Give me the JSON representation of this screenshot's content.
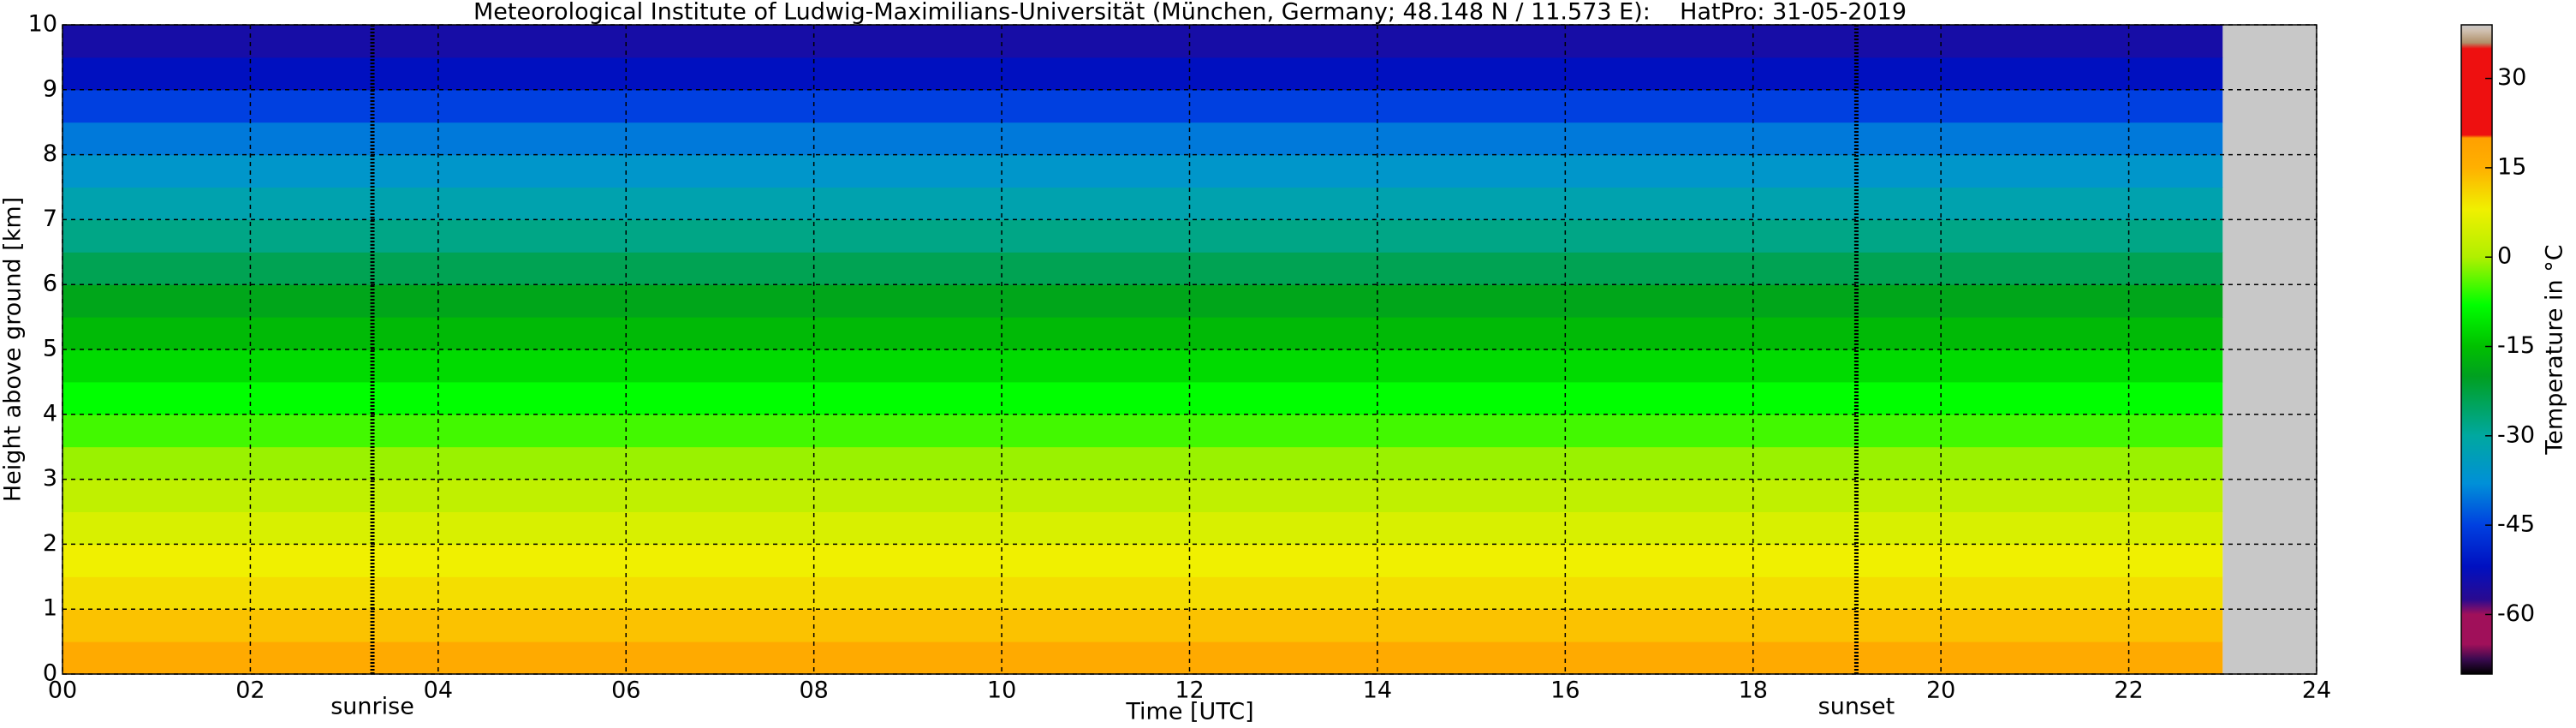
{
  "chart_data": {
    "type": "heatmap",
    "title": "Meteorological Institute of Ludwig-Maximilians-Universität (München, Germany; 48.148 N / 11.573 E):    HatPro: 31-05-2019",
    "xlabel": "Time [UTC]",
    "ylabel": "Height above ground [km]",
    "colorbar_label": "Temperature in °C",
    "x_range": [
      0,
      23
    ],
    "y": [
      0,
      0.5,
      1,
      1.5,
      2,
      2.5,
      3,
      3.5,
      4,
      4.5,
      5,
      5.5,
      6,
      6.5,
      7,
      7.5,
      8,
      8.5,
      9,
      9.5
    ],
    "y_step": 0.5,
    "values": [
      17,
      13,
      10,
      8,
      5,
      2,
      -1,
      -5,
      -8,
      -12,
      -16,
      -19,
      -24,
      -28,
      -32,
      -36,
      -40,
      -45,
      -52,
      -55
    ],
    "xlim": [
      0,
      24
    ],
    "xticks": [
      {
        "value": 0,
        "label": "00"
      },
      {
        "value": 2,
        "label": "02"
      },
      {
        "value": 4,
        "label": "04"
      },
      {
        "value": 6,
        "label": "06"
      },
      {
        "value": 8,
        "label": "08"
      },
      {
        "value": 10,
        "label": "10"
      },
      {
        "value": 12,
        "label": "12"
      },
      {
        "value": 14,
        "label": "14"
      },
      {
        "value": 16,
        "label": "16"
      },
      {
        "value": 18,
        "label": "18"
      },
      {
        "value": 20,
        "label": "20"
      },
      {
        "value": 22,
        "label": "22"
      },
      {
        "value": 24,
        "label": "24"
      }
    ],
    "ylim": [
      0,
      10
    ],
    "yticks": [
      0,
      1,
      2,
      3,
      4,
      5,
      6,
      7,
      8,
      9,
      10
    ],
    "clim": [
      -70,
      39
    ],
    "cticks": [
      30,
      15,
      0,
      -15,
      -30,
      -45,
      -60
    ],
    "colorscale": [
      {
        "value": -70,
        "color": "#000000"
      },
      {
        "value": -67.5,
        "color": "#3a0a50"
      },
      {
        "value": -65,
        "color": "#a0105a"
      },
      {
        "value": -60,
        "color": "#a0105a"
      },
      {
        "value": -57.5,
        "color": "#2a0a90"
      },
      {
        "value": -52,
        "color": "#0010c0"
      },
      {
        "value": -45,
        "color": "#0040e0"
      },
      {
        "value": -38,
        "color": "#0090d8"
      },
      {
        "value": -30,
        "color": "#00a8a0"
      },
      {
        "value": -20,
        "color": "#00a020"
      },
      {
        "value": -15,
        "color": "#00c000"
      },
      {
        "value": -8,
        "color": "#00ff00"
      },
      {
        "value": 0,
        "color": "#b0f000"
      },
      {
        "value": 8,
        "color": "#f0f000"
      },
      {
        "value": 15,
        "color": "#ffb000"
      },
      {
        "value": 20,
        "color": "#ffa000"
      },
      {
        "value": 20.5,
        "color": "#ee1010"
      },
      {
        "value": 35,
        "color": "#ee1010"
      },
      {
        "value": 36,
        "color": "#b0906a"
      },
      {
        "value": 38,
        "color": "#d0c0b0"
      },
      {
        "value": 39,
        "color": "#c8c8c8"
      }
    ],
    "missing_color": "#c8c8c8",
    "grid": true,
    "annotations": [
      {
        "label": "sunrise",
        "x": 3.3
      },
      {
        "label": "sunset",
        "x": 19.1
      }
    ]
  }
}
